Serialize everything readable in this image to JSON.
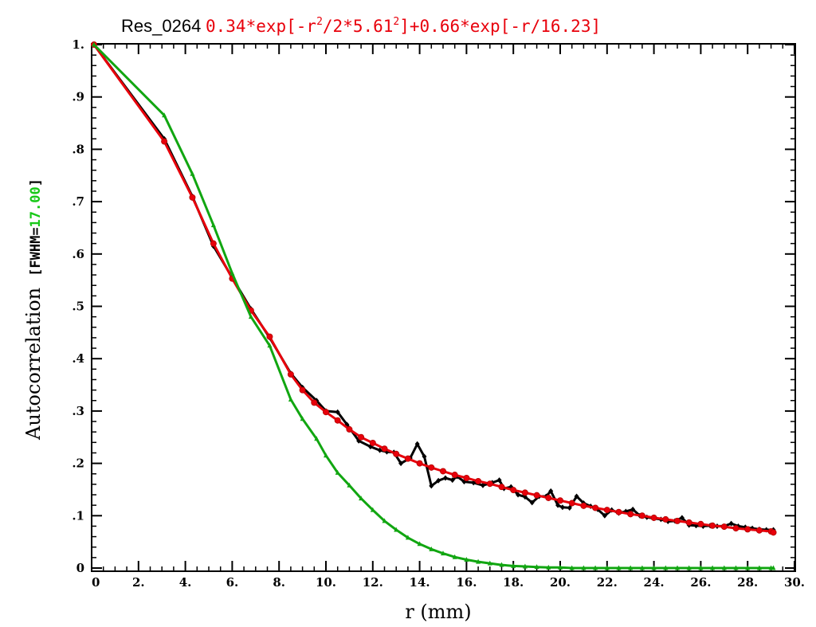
{
  "chart_data": {
    "type": "line",
    "title": "Res_0264",
    "fit_formula": {
      "a": "0.34*exp[-r",
      "sup1": "2",
      "b": "/2*5.61",
      "sup2": "2",
      "c": "]+0.66*exp[-r/16.23]"
    },
    "xlabel": "r (mm)",
    "ylabel": "Autocorrelation",
    "fwhm_prefix": "[FWHM=",
    "fwhm_value": "17.00",
    "fwhm_suffix": "]",
    "xlim": [
      0,
      30
    ],
    "ylim": [
      0,
      1.0
    ],
    "x_ticks": [
      {
        "v": 0,
        "label": "0"
      },
      {
        "v": 2,
        "label": "2."
      },
      {
        "v": 4,
        "label": "4."
      },
      {
        "v": 6,
        "label": "6."
      },
      {
        "v": 8,
        "label": "8."
      },
      {
        "v": 10,
        "label": "10."
      },
      {
        "v": 12,
        "label": "12."
      },
      {
        "v": 14,
        "label": "14."
      },
      {
        "v": 16,
        "label": "16."
      },
      {
        "v": 18,
        "label": "18."
      },
      {
        "v": 20,
        "label": "20."
      },
      {
        "v": 22,
        "label": "22."
      },
      {
        "v": 24,
        "label": "24."
      },
      {
        "v": 26,
        "label": "26."
      },
      {
        "v": 28,
        "label": "28."
      },
      {
        "v": 30,
        "label": "30."
      }
    ],
    "y_ticks": [
      {
        "v": 0,
        "label": "0"
      },
      {
        "v": 0.1,
        "label": ".1"
      },
      {
        "v": 0.2,
        "label": ".2"
      },
      {
        "v": 0.3,
        "label": ".3"
      },
      {
        "v": 0.4,
        "label": ".4"
      },
      {
        "v": 0.5,
        "label": ".5"
      },
      {
        "v": 0.6,
        "label": ".6"
      },
      {
        "v": 0.7,
        "label": ".7"
      },
      {
        "v": 0.8,
        "label": ".8"
      },
      {
        "v": 0.9,
        "label": ".9"
      },
      {
        "v": 1.0,
        "label": "1."
      }
    ],
    "grid": false,
    "series": [
      {
        "color": "#000000",
        "marker": "diamond",
        "points": [
          [
            0.1,
            1.0
          ],
          [
            3.1,
            0.82
          ],
          [
            4.3,
            0.71
          ],
          [
            5.2,
            0.615
          ],
          [
            6.0,
            0.555
          ],
          [
            6.8,
            0.495
          ],
          [
            7.6,
            0.44
          ],
          [
            8.5,
            0.372
          ],
          [
            9.0,
            0.345
          ],
          [
            9.6,
            0.32
          ],
          [
            10.0,
            0.3
          ],
          [
            10.5,
            0.298
          ],
          [
            10.9,
            0.274
          ],
          [
            11.4,
            0.243
          ],
          [
            11.9,
            0.232
          ],
          [
            12.3,
            0.225
          ],
          [
            12.6,
            0.222
          ],
          [
            12.9,
            0.221
          ],
          [
            13.2,
            0.2
          ],
          [
            13.6,
            0.21
          ],
          [
            13.9,
            0.237
          ],
          [
            14.2,
            0.213
          ],
          [
            14.5,
            0.157
          ],
          [
            14.8,
            0.167
          ],
          [
            15.1,
            0.172
          ],
          [
            15.4,
            0.168
          ],
          [
            15.6,
            0.175
          ],
          [
            15.9,
            0.165
          ],
          [
            16.3,
            0.163
          ],
          [
            16.7,
            0.158
          ],
          [
            17.1,
            0.163
          ],
          [
            17.4,
            0.168
          ],
          [
            17.6,
            0.152
          ],
          [
            17.9,
            0.155
          ],
          [
            18.2,
            0.14
          ],
          [
            18.5,
            0.136
          ],
          [
            18.8,
            0.125
          ],
          [
            19.1,
            0.137
          ],
          [
            19.4,
            0.137
          ],
          [
            19.6,
            0.147
          ],
          [
            19.9,
            0.12
          ],
          [
            20.1,
            0.116
          ],
          [
            20.4,
            0.115
          ],
          [
            20.7,
            0.137
          ],
          [
            21.0,
            0.124
          ],
          [
            21.3,
            0.118
          ],
          [
            21.6,
            0.112
          ],
          [
            21.9,
            0.1
          ],
          [
            22.2,
            0.111
          ],
          [
            22.5,
            0.105
          ],
          [
            22.8,
            0.108
          ],
          [
            23.1,
            0.112
          ],
          [
            23.4,
            0.1
          ],
          [
            23.7,
            0.097
          ],
          [
            24.0,
            0.095
          ],
          [
            24.3,
            0.093
          ],
          [
            24.6,
            0.089
          ],
          [
            24.9,
            0.09
          ],
          [
            25.2,
            0.096
          ],
          [
            25.5,
            0.082
          ],
          [
            25.8,
            0.081
          ],
          [
            26.1,
            0.08
          ],
          [
            26.4,
            0.081
          ],
          [
            26.7,
            0.08
          ],
          [
            27.0,
            0.08
          ],
          [
            27.3,
            0.085
          ],
          [
            27.6,
            0.08
          ],
          [
            27.9,
            0.078
          ],
          [
            28.2,
            0.076
          ],
          [
            28.5,
            0.074
          ],
          [
            28.8,
            0.073
          ],
          [
            29.1,
            0.073
          ]
        ]
      },
      {
        "color": "#e8000b",
        "marker": "circle",
        "points": [
          [
            0.1,
            1.0
          ],
          [
            3.1,
            0.815
          ],
          [
            4.3,
            0.708
          ],
          [
            5.2,
            0.62
          ],
          [
            6.0,
            0.553
          ],
          [
            6.8,
            0.492
          ],
          [
            7.6,
            0.442
          ],
          [
            8.5,
            0.37
          ],
          [
            9.0,
            0.34
          ],
          [
            9.5,
            0.316
          ],
          [
            10.0,
            0.298
          ],
          [
            10.5,
            0.282
          ],
          [
            11.0,
            0.265
          ],
          [
            11.5,
            0.25
          ],
          [
            12.0,
            0.239
          ],
          [
            12.5,
            0.228
          ],
          [
            13.0,
            0.218
          ],
          [
            13.5,
            0.209
          ],
          [
            14.0,
            0.2
          ],
          [
            14.5,
            0.192
          ],
          [
            15.0,
            0.185
          ],
          [
            15.5,
            0.178
          ],
          [
            16.0,
            0.172
          ],
          [
            16.5,
            0.166
          ],
          [
            17.0,
            0.161
          ],
          [
            17.5,
            0.155
          ],
          [
            18.0,
            0.149
          ],
          [
            18.5,
            0.144
          ],
          [
            19.0,
            0.139
          ],
          [
            19.5,
            0.134
          ],
          [
            20.0,
            0.129
          ],
          [
            20.5,
            0.124
          ],
          [
            21.0,
            0.119
          ],
          [
            21.5,
            0.115
          ],
          [
            22.0,
            0.111
          ],
          [
            22.5,
            0.107
          ],
          [
            23.0,
            0.103
          ],
          [
            23.5,
            0.1
          ],
          [
            24.0,
            0.096
          ],
          [
            24.5,
            0.093
          ],
          [
            25.0,
            0.09
          ],
          [
            25.5,
            0.087
          ],
          [
            26.0,
            0.084
          ],
          [
            26.5,
            0.081
          ],
          [
            27.0,
            0.079
          ],
          [
            27.5,
            0.076
          ],
          [
            28.0,
            0.074
          ],
          [
            28.5,
            0.072
          ],
          [
            29.0,
            0.07
          ],
          [
            29.1,
            0.068
          ]
        ]
      },
      {
        "color": "#11a611",
        "marker": "triangle",
        "points": [
          [
            0.1,
            1.0
          ],
          [
            3.1,
            0.865
          ],
          [
            4.3,
            0.753
          ],
          [
            5.2,
            0.655
          ],
          [
            6.0,
            0.563
          ],
          [
            6.8,
            0.48
          ],
          [
            7.6,
            0.425
          ],
          [
            8.5,
            0.322
          ],
          [
            9.0,
            0.285
          ],
          [
            9.6,
            0.247
          ],
          [
            10.0,
            0.215
          ],
          [
            10.5,
            0.182
          ],
          [
            11.0,
            0.158
          ],
          [
            11.5,
            0.133
          ],
          [
            12.0,
            0.111
          ],
          [
            12.5,
            0.09
          ],
          [
            13.0,
            0.073
          ],
          [
            13.5,
            0.058
          ],
          [
            14.0,
            0.046
          ],
          [
            14.5,
            0.036
          ],
          [
            15.0,
            0.028
          ],
          [
            15.5,
            0.021
          ],
          [
            16.0,
            0.016
          ],
          [
            16.5,
            0.012
          ],
          [
            17.0,
            0.009
          ],
          [
            17.5,
            0.006
          ],
          [
            18.0,
            0.004
          ],
          [
            18.5,
            0.003
          ],
          [
            19.0,
            0.002
          ],
          [
            19.5,
            0.001
          ],
          [
            20.0,
            0.001
          ],
          [
            20.5,
            0.0
          ],
          [
            21.0,
            0.0
          ],
          [
            21.5,
            0.0
          ],
          [
            22.0,
            0.0
          ],
          [
            22.5,
            0.0
          ],
          [
            23.0,
            0.0
          ],
          [
            23.5,
            0.0
          ],
          [
            24.0,
            0.0
          ],
          [
            24.5,
            0.0
          ],
          [
            25.0,
            0.0
          ],
          [
            25.5,
            0.0
          ],
          [
            26.0,
            0.0
          ],
          [
            26.5,
            0.0
          ],
          [
            27.0,
            0.0
          ],
          [
            27.5,
            0.0
          ],
          [
            28.0,
            0.0
          ],
          [
            28.5,
            0.0
          ],
          [
            29.0,
            0.0
          ],
          [
            29.1,
            0.0
          ]
        ]
      }
    ]
  }
}
